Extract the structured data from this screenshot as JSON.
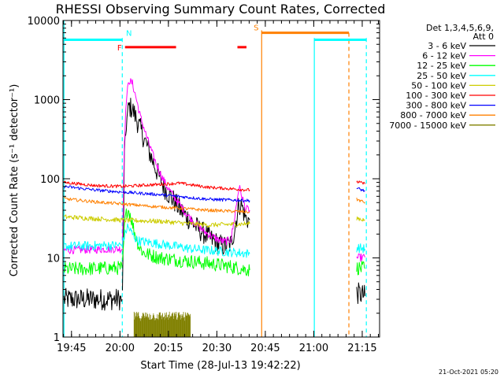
{
  "chart_data": {
    "type": "line",
    "title": "RHESSI Observing Summary Count Rates, Corrected",
    "xlabel": "Start Time (28-Jul-13 19:42:22)",
    "ylabel": "Corrected Count Rate (s⁻¹ detector⁻¹)",
    "x_unit": "minutes after 19:42:22",
    "xlim": [
      0,
      98
    ],
    "yscale": "log",
    "ylim": [
      1,
      10000
    ],
    "x_ticks": [
      {
        "x": 2.63,
        "label": "19:45"
      },
      {
        "x": 17.63,
        "label": "20:00"
      },
      {
        "x": 32.63,
        "label": "20:15"
      },
      {
        "x": 47.63,
        "label": "20:30"
      },
      {
        "x": 62.63,
        "label": "20:45"
      },
      {
        "x": 77.63,
        "label": "21:00"
      },
      {
        "x": 92.63,
        "label": "21:15"
      }
    ],
    "y_ticks": [
      {
        "y": 1,
        "label": "1"
      },
      {
        "y": 10,
        "label": "10"
      },
      {
        "y": 100,
        "label": "100"
      },
      {
        "y": 1000,
        "label": "1000"
      },
      {
        "y": 10000,
        "label": "10000"
      }
    ],
    "legend_header": [
      "Det 1,3,4,5,6,9,",
      "Att 0"
    ],
    "legend_position": "top-right outside",
    "series": [
      {
        "name": "3 - 6 keV",
        "color": "#000000",
        "noise": 0.14,
        "segments": [
          [
            [
              0.3,
              3
            ],
            [
              18.3,
              3
            ]
          ],
          [
            [
              18.4,
              3.2
            ],
            [
              19,
              180
            ],
            [
              19.6,
              500
            ],
            [
              20.4,
              820
            ],
            [
              21.5,
              760
            ],
            [
              22.5,
              600
            ],
            [
              24,
              420
            ],
            [
              26,
              260
            ],
            [
              28,
              160
            ],
            [
              30,
              100
            ],
            [
              32,
              70
            ],
            [
              34,
              55
            ],
            [
              36,
              42
            ],
            [
              38,
              34
            ],
            [
              40,
              28
            ],
            [
              42,
              23
            ],
            [
              44,
              20
            ],
            [
              46,
              17
            ],
            [
              48,
              15
            ],
            [
              50,
              14
            ],
            [
              52,
              15
            ],
            [
              53,
              22
            ],
            [
              54.5,
              48
            ],
            [
              55.4,
              45
            ],
            [
              56.5,
              32
            ],
            [
              57.8,
              30
            ]
          ],
          [
            [
              90.9,
              3.6
            ],
            [
              93.5,
              3.3
            ]
          ]
        ]
      },
      {
        "name": "6 - 12 keV",
        "color": "#ff00ff",
        "noise": 0.05,
        "segments": [
          [
            [
              0.3,
              12.5
            ],
            [
              18.3,
              13
            ]
          ],
          [
            [
              18.4,
              14
            ],
            [
              19,
              300
            ],
            [
              19.6,
              1000
            ],
            [
              20.4,
              1750
            ],
            [
              21.5,
              1600
            ],
            [
              22.5,
              1100
            ],
            [
              24,
              600
            ],
            [
              26,
              330
            ],
            [
              28,
              190
            ],
            [
              30,
              120
            ],
            [
              32,
              82
            ],
            [
              34,
              62
            ],
            [
              36,
              48
            ],
            [
              38,
              37
            ],
            [
              40,
              30
            ],
            [
              42,
              25
            ],
            [
              44,
              21
            ],
            [
              46,
              19
            ],
            [
              48,
              17
            ],
            [
              50,
              16
            ],
            [
              52,
              17
            ],
            [
              53,
              30
            ],
            [
              54.5,
              80
            ],
            [
              55.4,
              60
            ],
            [
              56.5,
              42
            ],
            [
              57.8,
              40
            ]
          ],
          [
            [
              90.9,
              10
            ],
            [
              93.5,
              10.2
            ]
          ]
        ]
      },
      {
        "name": "12 - 25 keV",
        "color": "#00ff00",
        "noise": 0.09,
        "segments": [
          [
            [
              0.3,
              7.2
            ],
            [
              18.3,
              7.5
            ]
          ],
          [
            [
              18.4,
              8
            ],
            [
              19.2,
              30
            ],
            [
              20,
              42
            ],
            [
              20.8,
              36
            ],
            [
              22,
              22
            ],
            [
              23.5,
              14
            ],
            [
              25,
              11.5
            ],
            [
              30,
              10
            ],
            [
              40,
              9
            ],
            [
              50,
              8
            ],
            [
              57.8,
              7
            ]
          ],
          [
            [
              90.9,
              7.5
            ],
            [
              93.5,
              7.3
            ]
          ]
        ]
      },
      {
        "name": "25 - 50 keV",
        "color": "#00ffff",
        "noise": 0.06,
        "segments": [
          [
            [
              0.3,
              14
            ],
            [
              18.3,
              14.5
            ]
          ],
          [
            [
              18.4,
              15
            ],
            [
              19.2,
              20
            ],
            [
              20,
              25
            ],
            [
              21.5,
              20
            ],
            [
              23,
              16.5
            ],
            [
              30,
              15
            ],
            [
              40,
              13
            ],
            [
              50,
              12
            ],
            [
              57.8,
              11.3
            ]
          ],
          [
            [
              90.9,
              13.5
            ],
            [
              93.5,
              13
            ]
          ]
        ]
      },
      {
        "name": "50 - 100 keV",
        "color": "#cccc00",
        "noise": 0.03,
        "segments": [
          [
            [
              0.3,
              33
            ],
            [
              18.3,
              30
            ]
          ],
          [
            [
              18.4,
              30
            ],
            [
              30,
              29
            ],
            [
              45,
              26
            ],
            [
              57.8,
              27
            ]
          ],
          [
            [
              90.9,
              32
            ],
            [
              93.5,
              30
            ]
          ]
        ]
      },
      {
        "name": "100 - 300 keV",
        "color": "#ff0000",
        "noise": 0.02,
        "segments": [
          [
            [
              0.3,
              90
            ],
            [
              10,
              82
            ],
            [
              18.3,
              80
            ]
          ],
          [
            [
              18.4,
              80
            ],
            [
              30,
              85
            ],
            [
              36,
              88
            ],
            [
              45,
              78
            ],
            [
              57.8,
              72
            ]
          ],
          [
            [
              90.9,
              92
            ],
            [
              93.5,
              86
            ]
          ]
        ]
      },
      {
        "name": "300 - 800 keV",
        "color": "#0000ff",
        "noise": 0.02,
        "segments": [
          [
            [
              0.3,
              80
            ],
            [
              10,
              72
            ],
            [
              18.3,
              68
            ]
          ],
          [
            [
              18.4,
              68
            ],
            [
              30,
              63
            ],
            [
              45,
              55
            ],
            [
              57.8,
              53
            ]
          ],
          [
            [
              90.9,
              76
            ],
            [
              93.5,
              70
            ]
          ]
        ]
      },
      {
        "name": "800 - 7000 keV",
        "color": "#ff8000",
        "noise": 0.02,
        "segments": [
          [
            [
              0.3,
              56
            ],
            [
              10,
              51
            ],
            [
              18.3,
              48
            ]
          ],
          [
            [
              18.4,
              48
            ],
            [
              30,
              44
            ],
            [
              45,
              40
            ],
            [
              57.8,
              38
            ]
          ],
          [
            [
              90.9,
              55
            ],
            [
              93.5,
              50
            ]
          ]
        ]
      },
      {
        "name": "7000 - 15000 keV",
        "color": "#808000",
        "noise": 0,
        "bars": [
          {
            "x0": 22,
            "x1": 39.5,
            "y_top": 2,
            "y_bottom": 1
          }
        ]
      }
    ],
    "vlines": [
      {
        "x": 0.3,
        "color": "#00ffff",
        "style": "solid",
        "y_top": 10000
      },
      {
        "x": 18.35,
        "color": "#00ffff",
        "style": "dashed",
        "y_top": 6000
      },
      {
        "x": 61.5,
        "color": "#ff8000",
        "style": "solid",
        "y_top": 7500
      },
      {
        "x": 77.8,
        "color": "#00ffff",
        "style": "solid",
        "y_top": 6000
      },
      {
        "x": 88.5,
        "color": "#ff8000",
        "style": "dashed",
        "y_top": 7000
      },
      {
        "x": 93.9,
        "color": "#00ffff",
        "style": "dashed",
        "y_top": 6000
      }
    ],
    "flag_bars": [
      {
        "x0": 0.3,
        "x1": 18.35,
        "y": 5700,
        "color": "#00ffff"
      },
      {
        "x0": 77.8,
        "x1": 93.9,
        "y": 5700,
        "color": "#00ffff"
      },
      {
        "x0": 19.2,
        "x1": 35.0,
        "y": 4600,
        "color": "#ff0000"
      },
      {
        "x0": 54.0,
        "x1": 56.8,
        "y": 4600,
        "color": "#ff0000"
      },
      {
        "x0": 61.5,
        "x1": 88.5,
        "y": 7000,
        "color": "#ff8000"
      }
    ],
    "flag_labels": [
      {
        "text": "N",
        "x": 20.4,
        "y": 7000,
        "color": "#00ffff"
      },
      {
        "text": "F",
        "x": 17.5,
        "y": 4600,
        "color": "#ff0000"
      },
      {
        "text": "S",
        "x": 59.8,
        "y": 8200,
        "color": "#ff8000"
      }
    ],
    "timestamp": "21-Oct-2021 05:20"
  }
}
